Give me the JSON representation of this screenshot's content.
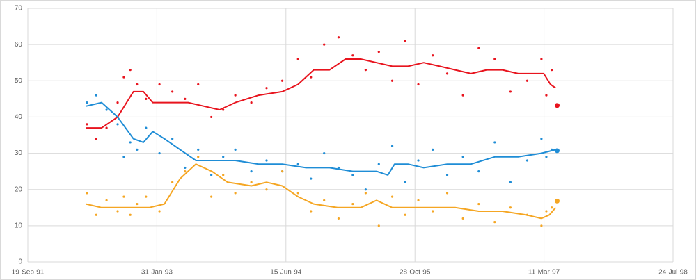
{
  "chart_data": {
    "type": "scatter",
    "xlim": [
      "1991-09-19",
      "1998-07-24"
    ],
    "xticks": [
      {
        "value": "1991-09-19",
        "label": "19-Sep-91"
      },
      {
        "value": "1993-01-31",
        "label": "31-Jan-93"
      },
      {
        "value": "1994-06-15",
        "label": "15-Jun-94"
      },
      {
        "value": "1995-10-28",
        "label": "28-Oct-95"
      },
      {
        "value": "1997-03-11",
        "label": "11-Mar-97"
      },
      {
        "value": "1998-07-24",
        "label": "24-Jul-98"
      }
    ],
    "ylim": [
      0,
      70
    ],
    "yticks": [
      0,
      10,
      20,
      30,
      40,
      50,
      60,
      70
    ],
    "grid": true,
    "series": [
      {
        "type": "scatter",
        "color": "#e8141e",
        "x": [
          "1992-05-05",
          "1992-06-10",
          "1992-07-20",
          "1992-09-01",
          "1992-09-25",
          "1992-10-20",
          "1992-11-15",
          "1992-12-20",
          "1993-02-10",
          "1993-04-01",
          "1993-05-20",
          "1993-07-10",
          "1993-08-30",
          "1993-10-15",
          "1993-12-01",
          "1994-02-01",
          "1994-04-01",
          "1994-06-01",
          "1994-08-01",
          "1994-09-20",
          "1994-11-10",
          "1995-01-05",
          "1995-03-01",
          "1995-04-20",
          "1995-06-10",
          "1995-08-01",
          "1995-09-20",
          "1995-11-10",
          "1996-01-05",
          "1996-03-01",
          "1996-05-01",
          "1996-07-01",
          "1996-09-01",
          "1996-11-01",
          "1997-01-05",
          "1997-03-01",
          "1997-03-20",
          "1997-04-10"
        ],
        "values": [
          38,
          34,
          37,
          44,
          51,
          53,
          49,
          45,
          49,
          47,
          45,
          49,
          40,
          42,
          46,
          44,
          48,
          50,
          56,
          51,
          60,
          62,
          57,
          53,
          58,
          50,
          61,
          49,
          57,
          52,
          46,
          59,
          56,
          47,
          50,
          56,
          46,
          53
        ]
      },
      {
        "type": "scatter",
        "color": "#1f8dd6",
        "x": [
          "1992-05-05",
          "1992-06-10",
          "1992-07-20",
          "1992-09-01",
          "1992-09-25",
          "1992-10-20",
          "1992-11-15",
          "1992-12-20",
          "1993-02-10",
          "1993-04-01",
          "1993-05-20",
          "1993-07-10",
          "1993-08-30",
          "1993-10-15",
          "1993-12-01",
          "1994-02-01",
          "1994-04-01",
          "1994-06-01",
          "1994-08-01",
          "1994-09-20",
          "1994-11-10",
          "1995-01-05",
          "1995-03-01",
          "1995-04-20",
          "1995-06-10",
          "1995-08-01",
          "1995-09-20",
          "1995-11-10",
          "1996-01-05",
          "1996-03-01",
          "1996-05-01",
          "1996-07-01",
          "1996-09-01",
          "1996-11-01",
          "1997-01-05",
          "1997-03-01",
          "1997-03-20",
          "1997-04-10"
        ],
        "values": [
          44,
          46,
          42,
          38,
          29,
          33,
          31,
          37,
          30,
          34,
          26,
          31,
          24,
          29,
          31,
          25,
          28,
          25,
          27,
          23,
          30,
          26,
          24,
          20,
          27,
          32,
          22,
          28,
          31,
          24,
          29,
          25,
          33,
          22,
          28,
          34,
          29,
          31
        ]
      },
      {
        "type": "scatter",
        "color": "#f5a623",
        "x": [
          "1992-05-05",
          "1992-06-10",
          "1992-07-20",
          "1992-09-01",
          "1992-09-25",
          "1992-10-20",
          "1992-11-15",
          "1992-12-20",
          "1993-02-10",
          "1993-04-01",
          "1993-05-20",
          "1993-07-10",
          "1993-08-30",
          "1993-10-15",
          "1993-12-01",
          "1994-02-01",
          "1994-04-01",
          "1994-06-01",
          "1994-08-01",
          "1994-09-20",
          "1994-11-10",
          "1995-01-05",
          "1995-03-01",
          "1995-04-20",
          "1995-06-10",
          "1995-08-01",
          "1995-09-20",
          "1995-11-10",
          "1996-01-05",
          "1996-03-01",
          "1996-05-01",
          "1996-07-01",
          "1996-09-01",
          "1996-11-01",
          "1997-01-05",
          "1997-03-01",
          "1997-03-20",
          "1997-04-10"
        ],
        "values": [
          19,
          13,
          17,
          14,
          18,
          13,
          16,
          18,
          14,
          22,
          25,
          29,
          18,
          24,
          19,
          22,
          20,
          25,
          19,
          14,
          17,
          12,
          16,
          19,
          10,
          18,
          13,
          17,
          14,
          19,
          12,
          16,
          11,
          15,
          13,
          10,
          14,
          15
        ]
      },
      {
        "type": "line",
        "color": "#e8141e",
        "x": [
          "1992-05-01",
          "1992-07-01",
          "1992-09-01",
          "1992-11-01",
          "1992-12-10",
          "1993-01-15",
          "1993-03-01",
          "1993-06-01",
          "1993-08-01",
          "1993-10-01",
          "1993-12-01",
          "1994-03-01",
          "1994-06-01",
          "1994-08-01",
          "1994-10-01",
          "1994-12-01",
          "1995-02-01",
          "1995-04-01",
          "1995-06-01",
          "1995-08-01",
          "1995-10-01",
          "1995-12-01",
          "1996-02-01",
          "1996-04-01",
          "1996-06-01",
          "1996-08-01",
          "1996-10-01",
          "1996-12-01",
          "1997-02-01",
          "1997-03-10",
          "1997-04-05",
          "1997-04-25"
        ],
        "values": [
          37,
          37,
          40,
          47,
          47,
          44,
          44,
          44,
          43,
          42,
          44,
          46,
          47,
          49,
          53,
          53,
          56,
          56,
          55,
          54,
          54,
          55,
          54,
          53,
          52,
          53,
          53,
          52,
          52,
          52,
          49,
          48
        ]
      },
      {
        "type": "line",
        "color": "#1f8dd6",
        "x": [
          "1992-05-01",
          "1992-07-01",
          "1992-09-01",
          "1992-11-01",
          "1992-12-10",
          "1993-01-15",
          "1993-03-01",
          "1993-05-01",
          "1993-07-01",
          "1993-09-01",
          "1993-12-01",
          "1994-03-01",
          "1994-06-01",
          "1994-09-01",
          "1994-12-01",
          "1995-03-01",
          "1995-06-01",
          "1995-07-15",
          "1995-08-10",
          "1995-10-01",
          "1995-12-01",
          "1996-03-01",
          "1996-06-01",
          "1996-09-01",
          "1996-12-01",
          "1997-03-01",
          "1997-04-25"
        ],
        "values": [
          43,
          44,
          40,
          34,
          33,
          36,
          34,
          31,
          28,
          28,
          28,
          27,
          27,
          26,
          26,
          25,
          25,
          24,
          27,
          27,
          26,
          27,
          27,
          29,
          29,
          30,
          31
        ]
      },
      {
        "type": "line",
        "color": "#f5a623",
        "x": [
          "1992-05-01",
          "1992-07-01",
          "1992-10-01",
          "1993-01-01",
          "1993-03-01",
          "1993-05-01",
          "1993-07-01",
          "1993-09-01",
          "1993-11-01",
          "1994-02-01",
          "1994-04-01",
          "1994-06-01",
          "1994-08-01",
          "1994-10-01",
          "1995-01-01",
          "1995-04-01",
          "1995-06-01",
          "1995-08-01",
          "1995-10-01",
          "1996-01-01",
          "1996-04-01",
          "1996-07-01",
          "1996-10-01",
          "1997-01-01",
          "1997-03-01",
          "1997-04-01",
          "1997-04-25"
        ],
        "values": [
          16,
          15,
          15,
          15,
          16,
          23,
          27,
          25,
          22,
          21,
          22,
          21,
          18,
          16,
          15,
          15,
          17,
          15,
          15,
          15,
          15,
          14,
          14,
          13,
          12,
          13,
          15
        ]
      },
      {
        "type": "result",
        "color": "#e8141e",
        "x": [
          "1997-05-01"
        ],
        "values": [
          43.2
        ]
      },
      {
        "type": "result",
        "color": "#1f8dd6",
        "x": [
          "1997-05-01"
        ],
        "values": [
          30.7
        ]
      },
      {
        "type": "result",
        "color": "#f5a623",
        "x": [
          "1997-05-01"
        ],
        "values": [
          16.8
        ]
      }
    ]
  }
}
